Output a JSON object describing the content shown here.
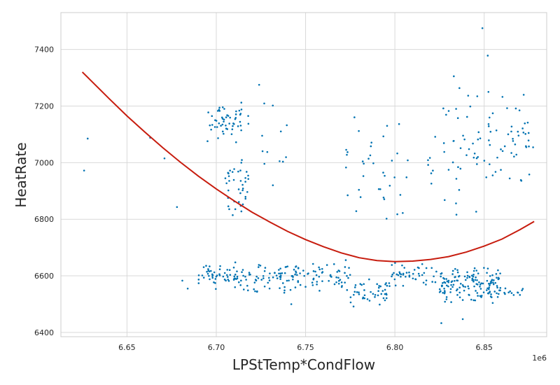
{
  "chart_data": {
    "type": "scatter",
    "title": "",
    "xlabel": "LPStTemp*CondFlow",
    "ylabel": "HeatRate",
    "x_offset_label": "1e6",
    "xlim": [
      6.613,
      6.885
    ],
    "ylim": [
      6385,
      7530
    ],
    "xticks": [
      6.65,
      6.7,
      6.75,
      6.8,
      6.85
    ],
    "xtick_labels": [
      "6.65",
      "6.70",
      "6.75",
      "6.80",
      "6.85"
    ],
    "yticks": [
      6400,
      6600,
      6800,
      7000,
      7200,
      7400
    ],
    "ytick_labels": [
      "6400",
      "6600",
      "6800",
      "7000",
      "7200",
      "7400"
    ],
    "grid": true,
    "colors": {
      "points": "#0173b2",
      "fit": "#c71c0e",
      "grid": "#d9d9d9",
      "spine": "#cccccc"
    },
    "scatter_clusters": [
      {
        "x": [
          6.69,
          6.715
        ],
        "y": [
          6540,
          6660
        ],
        "n": 60
      },
      {
        "x": [
          6.715,
          6.745
        ],
        "y": [
          6530,
          6660
        ],
        "n": 70
      },
      {
        "x": [
          6.745,
          6.775
        ],
        "y": [
          6540,
          6660
        ],
        "n": 60
      },
      {
        "x": [
          6.775,
          6.797
        ],
        "y": [
          6480,
          6590
        ],
        "n": 45
      },
      {
        "x": [
          6.797,
          6.825
        ],
        "y": [
          6560,
          6660
        ],
        "n": 45
      },
      {
        "x": [
          6.825,
          6.86
        ],
        "y": [
          6500,
          6640
        ],
        "n": 150
      },
      {
        "x": [
          6.86,
          6.872
        ],
        "y": [
          6520,
          6560
        ],
        "n": 12
      },
      {
        "x": [
          6.695,
          6.718
        ],
        "y": [
          7060,
          7220
        ],
        "n": 55
      },
      {
        "x": [
          6.705,
          6.718
        ],
        "y": [
          6800,
          7060
        ],
        "n": 40
      },
      {
        "x": [
          6.725,
          6.74
        ],
        "y": [
          6850,
          7250
        ],
        "n": 12
      },
      {
        "x": [
          6.77,
          6.795
        ],
        "y": [
          6800,
          7200
        ],
        "n": 25
      },
      {
        "x": [
          6.795,
          6.808
        ],
        "y": [
          6700,
          7200
        ],
        "n": 12
      },
      {
        "x": [
          6.818,
          6.85
        ],
        "y": [
          6800,
          7300
        ],
        "n": 45
      },
      {
        "x": [
          6.85,
          6.878
        ],
        "y": [
          6900,
          7280
        ],
        "n": 50
      }
    ],
    "scatter_points": [
      {
        "x": 6.626,
        "y": 6972
      },
      {
        "x": 6.628,
        "y": 7085
      },
      {
        "x": 6.663,
        "y": 7088
      },
      {
        "x": 6.671,
        "y": 7015
      },
      {
        "x": 6.678,
        "y": 6843
      },
      {
        "x": 6.681,
        "y": 6583
      },
      {
        "x": 6.684,
        "y": 6555
      },
      {
        "x": 6.849,
        "y": 7475
      },
      {
        "x": 6.852,
        "y": 7378
      },
      {
        "x": 6.833,
        "y": 7305
      },
      {
        "x": 6.826,
        "y": 6433
      },
      {
        "x": 6.838,
        "y": 6447
      },
      {
        "x": 6.742,
        "y": 6500
      },
      {
        "x": 6.724,
        "y": 7275
      }
    ],
    "fit_curve": {
      "name": "",
      "x": [
        6.625,
        6.64,
        6.65,
        6.66,
        6.67,
        6.68,
        6.69,
        6.7,
        6.71,
        6.72,
        6.73,
        6.74,
        6.75,
        6.76,
        6.77,
        6.78,
        6.79,
        6.8,
        6.81,
        6.82,
        6.83,
        6.84,
        6.85,
        6.86,
        6.87,
        6.878
      ],
      "y": [
        7320,
        7226,
        7165,
        7108,
        7053,
        7001,
        6952,
        6907,
        6865,
        6825,
        6790,
        6757,
        6728,
        6703,
        6681,
        6664,
        6654,
        6650,
        6652,
        6658,
        6668,
        6684,
        6705,
        6730,
        6763,
        6792
      ]
    }
  }
}
